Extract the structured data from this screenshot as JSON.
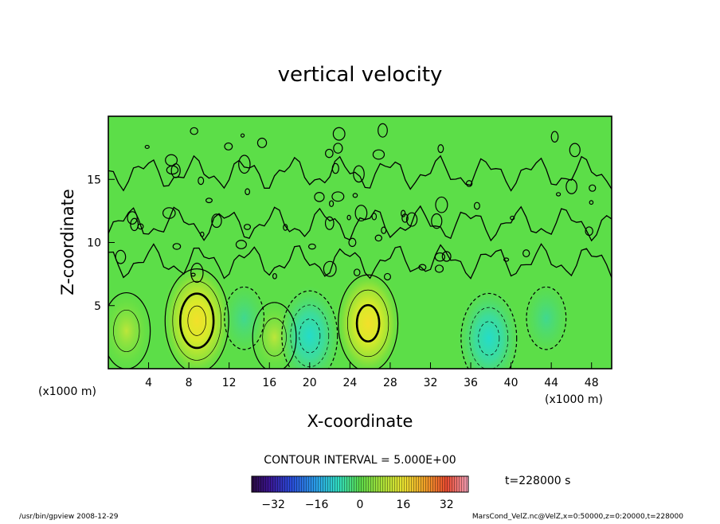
{
  "chart_data": {
    "type": "heatmap",
    "title": "vertical velocity",
    "xlabel": "X-coordinate",
    "ylabel": "Z-coordinate",
    "x_unit_left": "(x1000 m)",
    "x_unit_right": "(x1000 m)",
    "xlim": [
      0,
      50
    ],
    "ylim": [
      0,
      20
    ],
    "x_ticks": [
      "4",
      "8",
      "12",
      "16",
      "20",
      "24",
      "28",
      "32",
      "36",
      "40",
      "44",
      "48"
    ],
    "y_ticks": [
      "5",
      "10",
      "15"
    ],
    "contour_interval_label": "CONTOUR INTERVAL = 5.000E+00",
    "time_label": "t=228000 s",
    "colorbar_ticks": [
      "−32",
      "−16",
      "0",
      "16",
      "32"
    ],
    "colorbar_range": [
      -40,
      40
    ],
    "footer_left": "/usr/bin/gpview 2008-12-29",
    "footer_right": "MarsCond_VelZ.nc@VelZ,x=0:50000,z=0:20000,t=228000",
    "features": [
      {
        "kind": "updraft",
        "x": 8.8,
        "z": 3.8,
        "peak": 16
      },
      {
        "kind": "updraft",
        "x": 25.8,
        "z": 3.6,
        "peak": 14
      },
      {
        "kind": "updraft",
        "x": 1.8,
        "z": 3.0,
        "peak": 8
      },
      {
        "kind": "updraft",
        "x": 16.5,
        "z": 2.5,
        "peak": 6
      },
      {
        "kind": "downdraft",
        "x": 20.0,
        "z": 2.6,
        "peak": -12
      },
      {
        "kind": "downdraft",
        "x": 37.8,
        "z": 2.4,
        "peak": -12
      },
      {
        "kind": "downdraft",
        "x": 13.5,
        "z": 4.0,
        "peak": -4
      },
      {
        "kind": "downdraft",
        "x": 43.5,
        "z": 4.0,
        "peak": -4
      }
    ]
  }
}
